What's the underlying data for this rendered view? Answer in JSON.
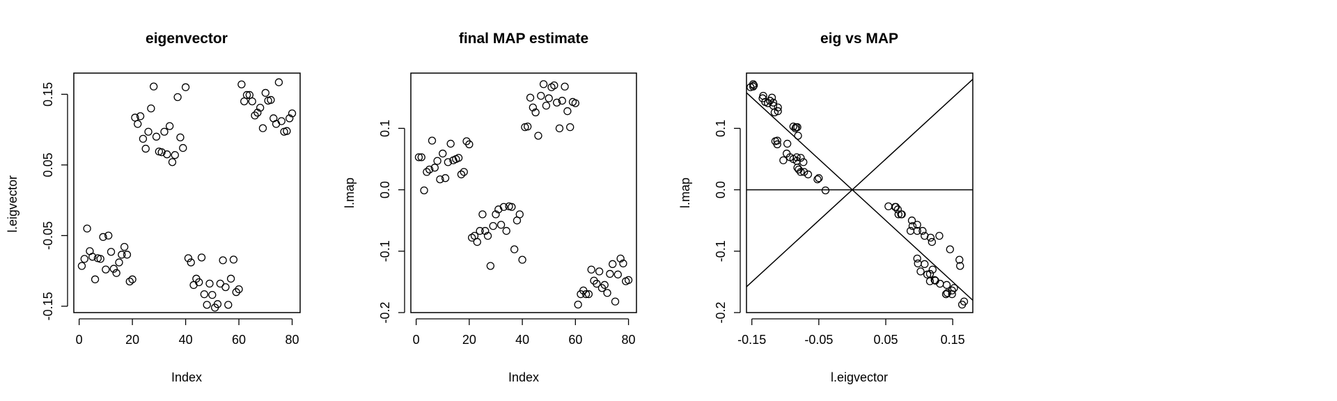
{
  "chart_data": [
    {
      "type": "scatter",
      "title": "eigenvector",
      "xlabel": "Index",
      "ylabel": "l.eigvector",
      "xlim": [
        -2,
        83
      ],
      "ylim": [
        -0.159,
        0.18
      ],
      "xticks": [
        0,
        20,
        40,
        60,
        80
      ],
      "xtick_labels": [
        "0",
        "20",
        "40",
        "60",
        "80"
      ],
      "yticks": [
        -0.15,
        -0.05,
        0.05,
        0.15
      ],
      "ytick_labels": [
        "-0.15",
        "-0.05",
        "0.05",
        "0.15"
      ],
      "x": [
        1,
        2,
        3,
        4,
        5,
        6,
        7,
        8,
        9,
        10,
        11,
        12,
        13,
        14,
        15,
        16,
        17,
        18,
        19,
        20,
        21,
        22,
        23,
        24,
        25,
        26,
        27,
        28,
        29,
        30,
        31,
        32,
        33,
        34,
        35,
        36,
        37,
        38,
        39,
        40,
        41,
        42,
        43,
        44,
        45,
        46,
        47,
        48,
        49,
        50,
        51,
        52,
        53,
        54,
        55,
        56,
        57,
        58,
        59,
        60,
        61,
        62,
        63,
        64,
        65,
        66,
        67,
        68,
        69,
        70,
        71,
        72,
        73,
        74,
        75,
        76,
        77,
        78,
        79,
        80
      ],
      "y": [
        -0.093,
        -0.083,
        -0.04,
        -0.072,
        -0.08,
        -0.112,
        -0.082,
        -0.083,
        -0.052,
        -0.098,
        -0.05,
        -0.073,
        -0.097,
        -0.103,
        -0.088,
        -0.077,
        -0.066,
        -0.077,
        -0.115,
        -0.112,
        0.117,
        0.108,
        0.119,
        0.087,
        0.073,
        0.097,
        0.13,
        0.161,
        0.09,
        0.069,
        0.068,
        0.097,
        0.065,
        0.105,
        0.054,
        0.064,
        0.146,
        0.089,
        0.074,
        0.16,
        -0.082,
        -0.088,
        -0.12,
        -0.111,
        -0.116,
        -0.081,
        -0.133,
        -0.148,
        -0.118,
        -0.134,
        -0.152,
        -0.147,
        -0.118,
        -0.085,
        -0.123,
        -0.148,
        -0.111,
        -0.084,
        -0.13,
        -0.126,
        0.164,
        0.14,
        0.149,
        0.149,
        0.14,
        0.12,
        0.124,
        0.131,
        0.102,
        0.152,
        0.141,
        0.142,
        0.116,
        0.108,
        0.167,
        0.112,
        0.097,
        0.098,
        0.116,
        0.123
      ]
    },
    {
      "type": "scatter",
      "title": "final MAP estimate",
      "xlabel": "Index",
      "ylabel": "l.map",
      "xlim": [
        -2,
        83
      ],
      "ylim": [
        -0.2,
        0.19
      ],
      "xticks": [
        0,
        20,
        40,
        60,
        80
      ],
      "xtick_labels": [
        "0",
        "20",
        "40",
        "60",
        "80"
      ],
      "yticks": [
        -0.2,
        -0.1,
        0.0,
        0.1
      ],
      "ytick_labels": [
        "-0.2",
        "-0.1",
        "0.0",
        "0.1"
      ],
      "x": [
        1,
        2,
        3,
        4,
        5,
        6,
        7,
        8,
        9,
        10,
        11,
        12,
        13,
        14,
        15,
        16,
        17,
        18,
        19,
        20,
        21,
        22,
        23,
        24,
        25,
        26,
        27,
        28,
        29,
        30,
        31,
        32,
        33,
        34,
        35,
        36,
        37,
        38,
        39,
        40,
        41,
        42,
        43,
        44,
        45,
        46,
        47,
        48,
        49,
        50,
        51,
        52,
        53,
        54,
        55,
        56,
        57,
        58,
        59,
        60,
        61,
        62,
        63,
        64,
        65,
        66,
        67,
        68,
        69,
        70,
        71,
        72,
        73,
        74,
        75,
        76,
        77,
        78,
        79,
        80
      ],
      "y": [
        0.053,
        0.053,
        -0.001,
        0.029,
        0.033,
        0.08,
        0.036,
        0.047,
        0.017,
        0.059,
        0.019,
        0.045,
        0.075,
        0.048,
        0.05,
        0.052,
        0.025,
        0.029,
        0.079,
        0.074,
        -0.078,
        -0.075,
        -0.085,
        -0.067,
        -0.04,
        -0.067,
        -0.075,
        -0.124,
        -0.059,
        -0.04,
        -0.032,
        -0.057,
        -0.028,
        -0.067,
        -0.027,
        -0.028,
        -0.097,
        -0.05,
        -0.04,
        -0.114,
        0.102,
        0.103,
        0.15,
        0.134,
        0.126,
        0.088,
        0.153,
        0.172,
        0.137,
        0.149,
        0.167,
        0.17,
        0.142,
        0.1,
        0.145,
        0.168,
        0.128,
        0.102,
        0.143,
        0.141,
        -0.187,
        -0.17,
        -0.164,
        -0.17,
        -0.17,
        -0.13,
        -0.148,
        -0.153,
        -0.133,
        -0.16,
        -0.155,
        -0.168,
        -0.137,
        -0.121,
        -0.182,
        -0.138,
        -0.112,
        -0.12,
        -0.149,
        -0.147
      ]
    },
    {
      "type": "scatter",
      "title": "eig vs MAP",
      "xlabel": "l.eigvector",
      "ylabel": "l.map",
      "xlim": [
        -0.158,
        0.18
      ],
      "ylim": [
        -0.2,
        0.19
      ],
      "xticks": [
        -0.15,
        -0.05,
        0.05,
        0.15
      ],
      "xtick_labels": [
        "-0.15",
        "-0.05",
        "0.05",
        "0.15"
      ],
      "yticks": [
        -0.2,
        -0.1,
        0.0,
        0.1
      ],
      "ytick_labels": [
        "-0.2",
        "-0.1",
        "0.0",
        "0.1"
      ],
      "reference_lines": [
        {
          "slope": 1,
          "intercept": 0
        },
        {
          "slope": -1,
          "intercept": 0
        },
        {
          "slope": 0,
          "intercept": 0
        }
      ],
      "x": [
        -0.093,
        -0.083,
        -0.04,
        -0.072,
        -0.08,
        -0.112,
        -0.082,
        -0.083,
        -0.052,
        -0.098,
        -0.05,
        -0.073,
        -0.097,
        -0.103,
        -0.088,
        -0.077,
        -0.066,
        -0.077,
        -0.115,
        -0.112,
        0.117,
        0.108,
        0.119,
        0.087,
        0.073,
        0.097,
        0.13,
        0.161,
        0.09,
        0.069,
        0.068,
        0.097,
        0.065,
        0.105,
        0.054,
        0.064,
        0.146,
        0.089,
        0.074,
        0.16,
        -0.082,
        -0.088,
        -0.12,
        -0.111,
        -0.116,
        -0.081,
        -0.133,
        -0.148,
        -0.118,
        -0.134,
        -0.152,
        -0.147,
        -0.118,
        -0.085,
        -0.123,
        -0.148,
        -0.111,
        -0.084,
        -0.13,
        -0.126,
        0.164,
        0.14,
        0.149,
        0.149,
        0.14,
        0.12,
        0.124,
        0.131,
        0.102,
        0.152,
        0.141,
        0.142,
        0.116,
        0.108,
        0.167,
        0.112,
        0.097,
        0.098,
        0.116,
        0.123
      ],
      "y": [
        0.053,
        0.053,
        -0.001,
        0.029,
        0.033,
        0.08,
        0.036,
        0.047,
        0.017,
        0.059,
        0.019,
        0.045,
        0.075,
        0.048,
        0.05,
        0.052,
        0.025,
        0.029,
        0.079,
        0.074,
        -0.078,
        -0.075,
        -0.085,
        -0.067,
        -0.04,
        -0.067,
        -0.075,
        -0.124,
        -0.059,
        -0.04,
        -0.032,
        -0.057,
        -0.028,
        -0.067,
        -0.027,
        -0.028,
        -0.097,
        -0.05,
        -0.04,
        -0.114,
        0.102,
        0.103,
        0.15,
        0.134,
        0.126,
        0.088,
        0.153,
        0.172,
        0.137,
        0.149,
        0.167,
        0.17,
        0.142,
        0.1,
        0.145,
        0.168,
        0.128,
        0.102,
        0.143,
        0.141,
        -0.187,
        -0.17,
        -0.164,
        -0.17,
        -0.17,
        -0.13,
        -0.148,
        -0.153,
        -0.133,
        -0.16,
        -0.155,
        -0.168,
        -0.137,
        -0.121,
        -0.182,
        -0.138,
        -0.112,
        -0.12,
        -0.149,
        -0.147
      ]
    }
  ]
}
